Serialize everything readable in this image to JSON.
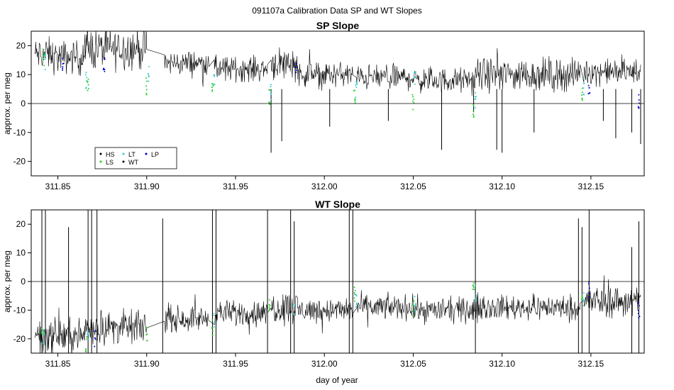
{
  "figure": {
    "title": "091107a   Calibration Data SP and WT Slopes",
    "xlabel": "day of year"
  },
  "colors": {
    "HS": "#000000",
    "LS": "#22cc22",
    "LT": "#33cccc",
    "WT": "#000000",
    "LP": "#0000cc"
  },
  "chart_data": [
    {
      "type": "line",
      "title": "SP Slope",
      "xlabel": "",
      "ylabel": "approx. per meg",
      "xlim": [
        311.835,
        312.18
      ],
      "ylim": [
        -25,
        25
      ],
      "xticks": [
        311.85,
        311.9,
        311.95,
        312.0,
        312.05,
        312.1,
        312.15
      ],
      "xtick_labels": [
        "311.85",
        "311.90",
        "311.95",
        "312.00",
        "312.05",
        "312.10",
        "312.15"
      ],
      "yticks": [
        -20,
        -10,
        0,
        10,
        20
      ],
      "ytick_labels": [
        "-20",
        "-10",
        "0",
        "10",
        "20"
      ],
      "hline": 0,
      "legend": {
        "placement": "bottom-left",
        "entries": [
          "HS",
          "LS",
          "LT",
          "WT",
          "LP"
        ]
      },
      "segments": [
        {
          "x": [
            311.837,
            311.847
          ],
          "level": 17,
          "noise": 4
        },
        {
          "x": [
            311.847,
            311.865
          ],
          "level": 16,
          "noise": 4
        },
        {
          "x": [
            311.865,
            311.9
          ],
          "level": 19,
          "noise": 5
        },
        {
          "x": [
            311.91,
            311.935
          ],
          "level": 14,
          "noise": 3
        },
        {
          "x": [
            311.938,
            311.968
          ],
          "level": 12,
          "noise": 3
        },
        {
          "x": [
            311.97,
            311.985
          ],
          "level": 14,
          "noise": 4
        },
        {
          "x": [
            311.985,
            312.016
          ],
          "level": 10,
          "noise": 3
        },
        {
          "x": [
            312.018,
            312.05
          ],
          "level": 9,
          "noise": 3
        },
        {
          "x": [
            312.05,
            312.085
          ],
          "level": 8,
          "noise": 3
        },
        {
          "x": [
            312.085,
            312.144
          ],
          "level": 10,
          "noise": 4
        },
        {
          "x": [
            312.146,
            312.178
          ],
          "level": 11,
          "noise": 3
        }
      ],
      "dips": [
        {
          "x": 311.97,
          "y": -17
        },
        {
          "x": 311.976,
          "y": -13
        },
        {
          "x": 312.003,
          "y": -8
        },
        {
          "x": 312.036,
          "y": -6
        },
        {
          "x": 312.066,
          "y": -16
        },
        {
          "x": 312.084,
          "y": -3
        },
        {
          "x": 312.097,
          "y": -16
        },
        {
          "x": 312.1,
          "y": -17
        },
        {
          "x": 312.118,
          "y": -10
        },
        {
          "x": 312.157,
          "y": -6
        },
        {
          "x": 312.164,
          "y": -12
        },
        {
          "x": 312.173,
          "y": -10
        },
        {
          "x": 312.178,
          "y": -14
        }
      ],
      "markers": [
        {
          "x": 311.842,
          "y": 16,
          "series": "LS"
        },
        {
          "x": 311.843,
          "y": 14,
          "series": "LT"
        },
        {
          "x": 311.853,
          "y": 13,
          "series": "LP"
        },
        {
          "x": 311.867,
          "y": 6,
          "series": "LS"
        },
        {
          "x": 311.866,
          "y": 8,
          "series": "LT"
        },
        {
          "x": 311.876,
          "y": 13,
          "series": "LP"
        },
        {
          "x": 311.9,
          "y": 6,
          "series": "LS"
        },
        {
          "x": 311.901,
          "y": 10,
          "series": "LT"
        },
        {
          "x": 311.937,
          "y": 7,
          "series": "LS"
        },
        {
          "x": 311.938,
          "y": 9,
          "series": "LT"
        },
        {
          "x": 311.969,
          "y": 2,
          "series": "LS"
        },
        {
          "x": 311.97,
          "y": 4,
          "series": "LT"
        },
        {
          "x": 311.984,
          "y": 11,
          "series": "LP"
        },
        {
          "x": 312.017,
          "y": 2,
          "series": "LS"
        },
        {
          "x": 312.018,
          "y": 5,
          "series": "LT"
        },
        {
          "x": 312.05,
          "y": 0,
          "series": "LS"
        },
        {
          "x": 312.051,
          "y": 9,
          "series": "LT"
        },
        {
          "x": 312.084,
          "y": -2,
          "series": "LS"
        },
        {
          "x": 312.085,
          "y": 1,
          "series": "LT"
        },
        {
          "x": 312.145,
          "y": 4,
          "series": "LS"
        },
        {
          "x": 312.146,
          "y": 6,
          "series": "LT"
        },
        {
          "x": 312.149,
          "y": 5,
          "series": "LP"
        },
        {
          "x": 312.177,
          "y": 0,
          "series": "LP"
        }
      ]
    },
    {
      "type": "line",
      "title": "WT Slope",
      "xlabel": "day of year",
      "ylabel": "approx. per meg",
      "xlim": [
        311.835,
        312.18
      ],
      "ylim": [
        -25,
        25
      ],
      "xticks": [
        311.85,
        311.9,
        311.95,
        312.0,
        312.05,
        312.1,
        312.15
      ],
      "xtick_labels": [
        "311.85",
        "311.90",
        "311.95",
        "312.00",
        "312.05",
        "312.10",
        "312.15"
      ],
      "yticks": [
        -20,
        -10,
        0,
        10,
        20
      ],
      "ytick_labels": [
        "-20",
        "-10",
        "0",
        "10",
        "20"
      ],
      "hline": 0,
      "segments": [
        {
          "x": [
            311.837,
            311.865
          ],
          "level": -19,
          "noise": 4
        },
        {
          "x": [
            311.865,
            311.9
          ],
          "level": -16,
          "noise": 4
        },
        {
          "x": [
            311.91,
            311.935
          ],
          "level": -13,
          "noise": 3
        },
        {
          "x": [
            311.938,
            311.968
          ],
          "level": -11,
          "noise": 3
        },
        {
          "x": [
            311.97,
            311.985
          ],
          "level": -9,
          "noise": 4
        },
        {
          "x": [
            311.985,
            312.016
          ],
          "level": -10,
          "noise": 3
        },
        {
          "x": [
            312.018,
            312.05
          ],
          "level": -9,
          "noise": 3
        },
        {
          "x": [
            312.05,
            312.085
          ],
          "level": -10,
          "noise": 3
        },
        {
          "x": [
            312.085,
            312.144
          ],
          "level": -9,
          "noise": 3
        },
        {
          "x": [
            312.146,
            312.178
          ],
          "level": -7,
          "noise": 4
        }
      ],
      "spikes": [
        {
          "x": 311.841,
          "y": 25
        },
        {
          "x": 311.843,
          "y": 25
        },
        {
          "x": 311.856,
          "y": 19
        },
        {
          "x": 311.867,
          "y": 25
        },
        {
          "x": 311.869,
          "y": 25
        },
        {
          "x": 311.872,
          "y": 25
        },
        {
          "x": 311.909,
          "y": 22
        },
        {
          "x": 311.937,
          "y": 25
        },
        {
          "x": 311.939,
          "y": 25
        },
        {
          "x": 311.968,
          "y": 25
        },
        {
          "x": 311.981,
          "y": 25
        },
        {
          "x": 311.983,
          "y": 21
        },
        {
          "x": 312.014,
          "y": 25
        },
        {
          "x": 312.016,
          "y": 25
        },
        {
          "x": 312.085,
          "y": 25
        },
        {
          "x": 312.143,
          "y": 22
        },
        {
          "x": 312.145,
          "y": 19
        },
        {
          "x": 312.149,
          "y": 25
        },
        {
          "x": 312.173,
          "y": 12
        },
        {
          "x": 312.177,
          "y": 21
        }
      ],
      "markers": [
        {
          "x": 311.841,
          "y": -18,
          "series": "LS"
        },
        {
          "x": 311.842,
          "y": -20,
          "series": "LT"
        },
        {
          "x": 311.866,
          "y": -22,
          "series": "LS"
        },
        {
          "x": 311.867,
          "y": -19,
          "series": "LT"
        },
        {
          "x": 311.871,
          "y": -20,
          "series": "LP"
        },
        {
          "x": 311.9,
          "y": -19,
          "series": "LS"
        },
        {
          "x": 311.937,
          "y": -16,
          "series": "LS"
        },
        {
          "x": 311.938,
          "y": -14,
          "series": "LT"
        },
        {
          "x": 311.969,
          "y": -8,
          "series": "LS"
        },
        {
          "x": 311.983,
          "y": -10,
          "series": "LT"
        },
        {
          "x": 312.017,
          "y": -5,
          "series": "LS"
        },
        {
          "x": 312.018,
          "y": -7,
          "series": "LT"
        },
        {
          "x": 312.05,
          "y": -9,
          "series": "LS"
        },
        {
          "x": 312.051,
          "y": -8,
          "series": "LT"
        },
        {
          "x": 312.084,
          "y": -2,
          "series": "LS"
        },
        {
          "x": 312.085,
          "y": -4,
          "series": "LT"
        },
        {
          "x": 312.145,
          "y": -4,
          "series": "LS"
        },
        {
          "x": 312.146,
          "y": -6,
          "series": "LT"
        },
        {
          "x": 312.149,
          "y": -3,
          "series": "LP"
        },
        {
          "x": 312.177,
          "y": -10,
          "series": "LP"
        }
      ]
    }
  ]
}
